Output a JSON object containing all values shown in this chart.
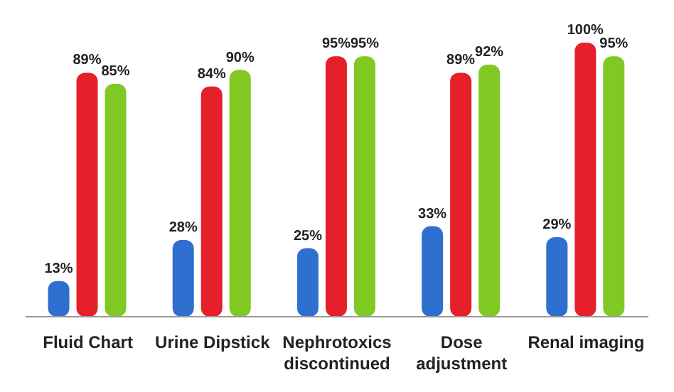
{
  "chart_data": {
    "type": "bar",
    "categories": [
      "Fluid Chart",
      "Urine Dipstick",
      "Nephrotoxics discontinued",
      "Dose adjustment",
      "Renal imaging"
    ],
    "series": [
      {
        "color": "#2e6fd0",
        "values": [
          13,
          28,
          25,
          33,
          29
        ],
        "value_labels": [
          "13%",
          "28%",
          "25%",
          "33%",
          "29%"
        ]
      },
      {
        "color": "#e5202b",
        "values": [
          89,
          84,
          95,
          89,
          100
        ],
        "value_labels": [
          "89%",
          "84%",
          "95%",
          "89%",
          "100%"
        ]
      },
      {
        "color": "#80c922",
        "values": [
          85,
          90,
          95,
          92,
          95
        ],
        "value_labels": [
          "85%",
          "90%",
          "95%",
          "92%",
          "95%"
        ]
      }
    ],
    "grid": false,
    "legend": false
  }
}
